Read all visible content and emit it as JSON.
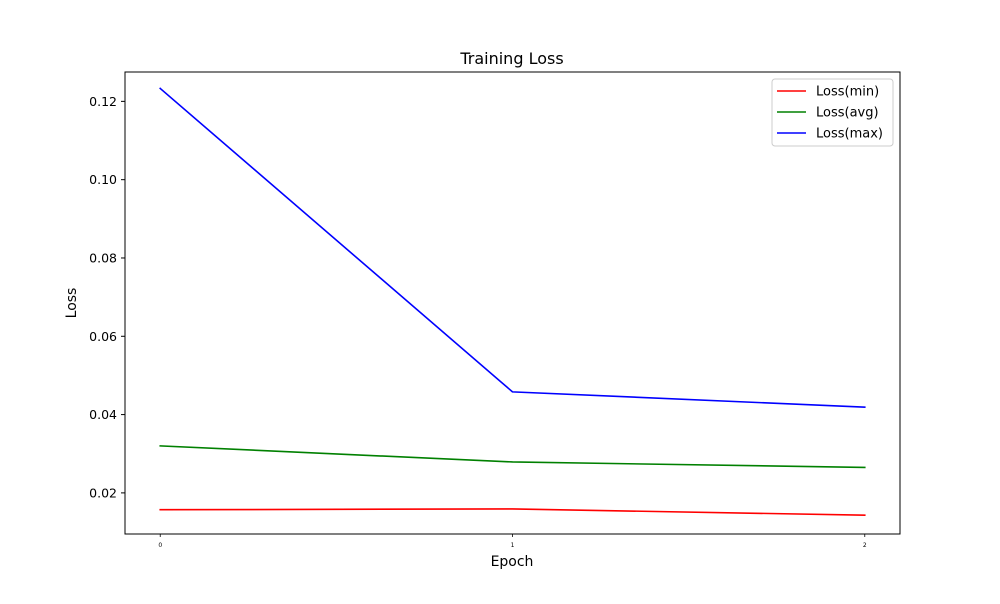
{
  "chart_data": {
    "type": "line",
    "title": "Training Loss",
    "xlabel": "Epoch",
    "ylabel": "Loss",
    "x": [
      0,
      1,
      2
    ],
    "x_tick_labels": [
      "0",
      "1",
      "2"
    ],
    "y_ticks": [
      0.02,
      0.04,
      0.06,
      0.08,
      0.1,
      0.12
    ],
    "y_tick_labels": [
      "0.02",
      "0.04",
      "0.06",
      "0.08",
      "0.10",
      "0.12"
    ],
    "xlim": [
      -0.1,
      2.1
    ],
    "ylim": [
      0.0095,
      0.1275
    ],
    "grid": false,
    "legend_position": "top-right",
    "series": [
      {
        "name": "Loss(min)",
        "color": "#ff0000",
        "values": [
          0.0157,
          0.0159,
          0.0143
        ]
      },
      {
        "name": "Loss(avg)",
        "color": "#008000",
        "values": [
          0.032,
          0.0279,
          0.0265
        ]
      },
      {
        "name": "Loss(max)",
        "color": "#0000ff",
        "values": [
          0.1233,
          0.0458,
          0.0419
        ]
      }
    ]
  }
}
